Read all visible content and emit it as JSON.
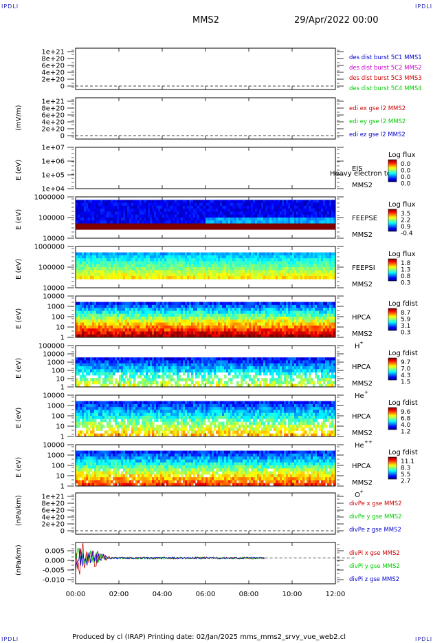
{
  "header": {
    "corner_label": "IPDLI",
    "spacecraft": "MMS2",
    "datetime": "29/Apr/2022 00:00"
  },
  "footer": {
    "credits": "Produced by cl (IRAP)   Printing date: 02/Jan/2025   mms_mms2_srvy_vue_web2.cl"
  },
  "colors": {
    "blue": "#0000cc",
    "magenta": "#cc00cc",
    "red": "#cc0000",
    "green": "#00cc00"
  },
  "chart_data": [
    {
      "type": "line",
      "id": "des_dist",
      "ylabel": "",
      "yticks": [
        "1e+21",
        "8e+20",
        "6e+20",
        "4e+20",
        "2e+20",
        "0"
      ],
      "ylim": [
        0,
        1e+21
      ],
      "series": [
        {
          "name": "des dist burst 5C1 MMS1",
          "color": "#0000cc",
          "x": [],
          "y": []
        },
        {
          "name": "des dist burst 5C2 MMS2",
          "color": "#cc00cc",
          "x": [],
          "y": []
        },
        {
          "name": "des dist burst 5C3 MMS3",
          "color": "#cc0000",
          "x": [],
          "y": []
        },
        {
          "name": "des dist burst 5C4 MMS4",
          "color": "#00cc00",
          "x": [],
          "y": []
        }
      ]
    },
    {
      "type": "line",
      "id": "edi",
      "ylabel": "(mV/m)",
      "yticks": [
        "1e+21",
        "8e+20",
        "6e+20",
        "4e+20",
        "2e+20",
        "0"
      ],
      "ylim": [
        0,
        1e+21
      ],
      "series": [
        {
          "name": "edi ex gse l2 MMS2",
          "color": "#cc0000",
          "x": [],
          "y": []
        },
        {
          "name": "edi ey gse l2 MMS2",
          "color": "#00cc00",
          "x": [],
          "y": []
        },
        {
          "name": "edi ez gse l2 MMS2",
          "color": "#0000cc",
          "x": [],
          "y": []
        }
      ]
    },
    {
      "type": "heatmap",
      "id": "eis",
      "ylabel": "E (eV)",
      "yticks": [
        "1e+07",
        "1e+06",
        "1e+05",
        "1e+04"
      ],
      "ylim": [
        10000.0,
        10000000.0
      ],
      "labels": [
        "EIS",
        "MMS2"
      ],
      "overlay_text": "Heavy electron tof",
      "colorbar": {
        "title": "Log flux",
        "ticks": [
          "0.0",
          "0.0",
          "0.0",
          "0.0"
        ]
      },
      "level": 0
    },
    {
      "type": "heatmap",
      "id": "feepse",
      "ylabel": "E (eV)",
      "yticks": [
        "1000000",
        "100000",
        "10000"
      ],
      "ylim": [
        10000,
        1000000
      ],
      "labels": [
        "FEEPSE",
        "MMS2"
      ],
      "colorbar": {
        "title": "Log flux",
        "ticks": [
          "3.5",
          "2.2",
          "0.9",
          "-0.4"
        ]
      },
      "level": 0.15
    },
    {
      "type": "heatmap",
      "id": "feepsi",
      "ylabel": "E (eV)",
      "yticks": [
        "1000000",
        "100000",
        "10000"
      ],
      "ylim": [
        10000,
        1000000
      ],
      "labels": [
        "FEEPSI",
        "MMS2"
      ],
      "colorbar": {
        "title": "Log flux",
        "ticks": [
          "1.8",
          "1.3",
          "0.8",
          "0.3"
        ]
      },
      "level": 0.4
    },
    {
      "type": "heatmap",
      "id": "hpca_h",
      "ylabel": "E (eV)",
      "yticks": [
        "10000",
        "1000",
        "100",
        "10",
        "1"
      ],
      "ylim": [
        1,
        30000
      ],
      "labels": [
        "HPCA",
        "MMS2",
        "H",
        "+"
      ],
      "colorbar": {
        "title": "Log fdist",
        "ticks": [
          "8.7",
          "5.9",
          "3.1",
          "0.3"
        ]
      },
      "level": 0.9
    },
    {
      "type": "heatmap",
      "id": "hpca_he",
      "ylabel": "E (eV)",
      "yticks": [
        "100000",
        "10000",
        "1000",
        "100",
        "10",
        "1"
      ],
      "ylim": [
        1,
        100000
      ],
      "labels": [
        "HPCA",
        "MMS2",
        "He",
        "+"
      ],
      "colorbar": {
        "title": "Log fdist",
        "ticks": [
          "9.7",
          "7.0",
          "4.3",
          "1.5"
        ]
      },
      "level": 0.5
    },
    {
      "type": "heatmap",
      "id": "hpca_hepp",
      "ylabel": "E (eV)",
      "yticks": [
        "10000",
        "1000",
        "100",
        "10",
        "1"
      ],
      "ylim": [
        1,
        30000
      ],
      "labels": [
        "HPCA",
        "MMS2",
        "He",
        "++"
      ],
      "colorbar": {
        "title": "Log fdist",
        "ticks": [
          "9.6",
          "6.8",
          "4.0",
          "1.2"
        ]
      },
      "level": 0.6
    },
    {
      "type": "heatmap",
      "id": "hpca_o",
      "ylabel": "E (eV)",
      "yticks": [
        "10000",
        "1000",
        "100",
        "10",
        "1"
      ],
      "ylim": [
        1,
        30000
      ],
      "labels": [
        "HPCA",
        "MMS2",
        "O",
        "+"
      ],
      "colorbar": {
        "title": "Log fdist",
        "ticks": [
          "11.1",
          "8.3",
          "5.5",
          "2.7"
        ]
      },
      "level": 0.75
    },
    {
      "type": "line",
      "id": "divpe",
      "ylabel": "(nPa/km)",
      "yticks": [
        "1e+21",
        "8e+20",
        "6e+20",
        "4e+20",
        "2e+20",
        "0"
      ],
      "ylim": [
        0,
        1e+21
      ],
      "series": [
        {
          "name": "divPe x gse MMS2",
          "color": "#cc0000",
          "x": [],
          "y": []
        },
        {
          "name": "divPe y gse MMS2",
          "color": "#00cc00",
          "x": [],
          "y": []
        },
        {
          "name": "divPe z gse MMS2",
          "color": "#0000cc",
          "x": [],
          "y": []
        }
      ]
    },
    {
      "type": "line",
      "id": "divpi",
      "ylabel": "(nPa/km)",
      "yticks": [
        "0.005",
        "0.000",
        "-0.005",
        "-0.010"
      ],
      "ylim": [
        -0.0125,
        0.0075
      ],
      "series": [
        {
          "name": "divPi x gse MMS2",
          "color": "#cc0000"
        },
        {
          "name": "divPi y gse MMS2",
          "color": "#00cc00"
        },
        {
          "name": "divPi z gse MMS2",
          "color": "#0000cc"
        }
      ],
      "data_end_hour": 8.75
    }
  ],
  "x_axis": {
    "ticks": [
      "00:00",
      "02:00",
      "04:00",
      "06:00",
      "08:00",
      "10:00",
      "12:00"
    ],
    "range_hours": [
      0,
      12
    ]
  }
}
